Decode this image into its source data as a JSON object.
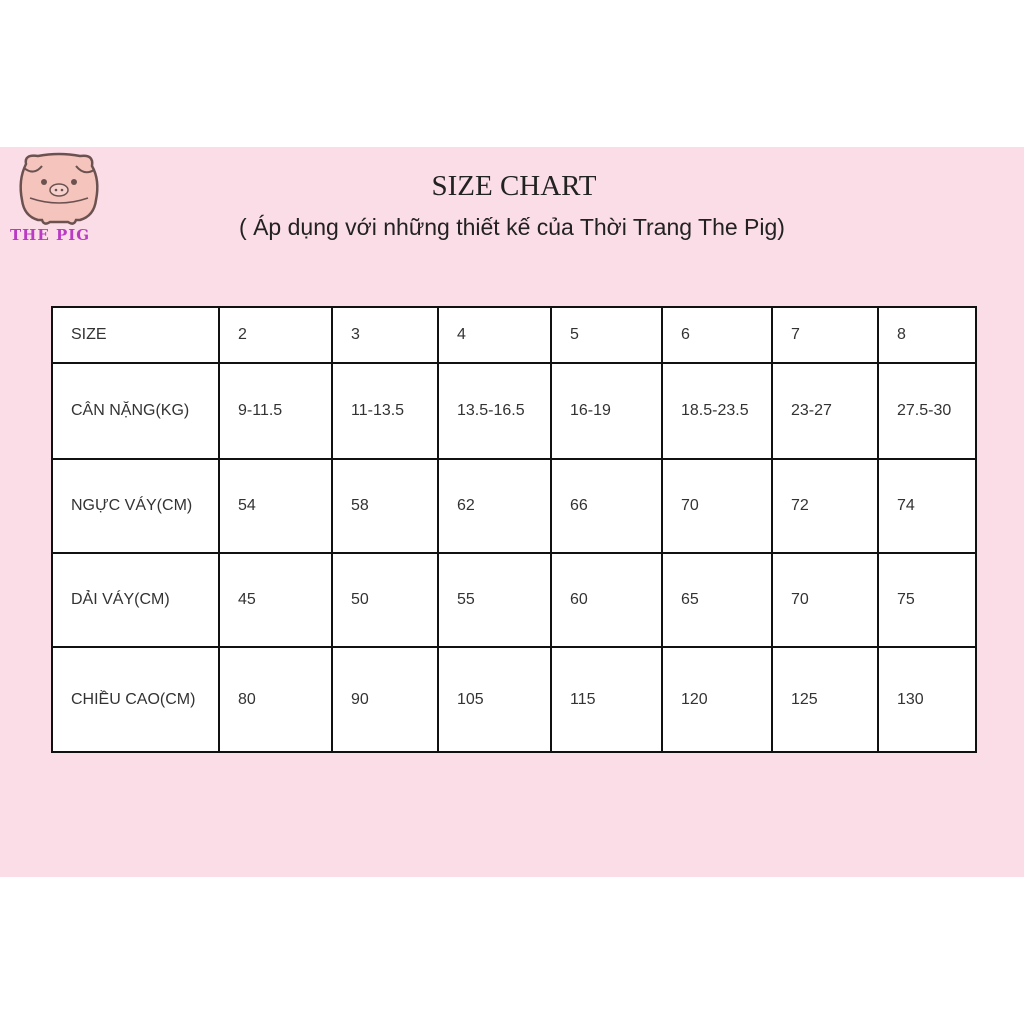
{
  "brand": {
    "logo_text": "THE PIG",
    "logo_icon": "pig-icon",
    "accent": "#b93bc4",
    "background": "#fbdde7"
  },
  "header": {
    "title": "SIZE CHART",
    "subtitle": "( Áp dụng với những thiết kế của Thời Trang The Pig)"
  },
  "table": {
    "rows": [
      {
        "label": "SIZE",
        "values": [
          "2",
          "3",
          "4",
          "5",
          "6",
          "7",
          "8"
        ]
      },
      {
        "label": "CÂN NẶNG(KG)",
        "values": [
          "9-11.5",
          "11-13.5",
          "13.5-16.5",
          "16-19",
          "18.5-23.5",
          "23-27",
          "27.5-30"
        ]
      },
      {
        "label": "NGỰC VÁY(CM)",
        "values": [
          "54",
          "58",
          "62",
          "66",
          "70",
          "72",
          "74"
        ]
      },
      {
        "label": "DẢI VÁY(CM)",
        "values": [
          "45",
          "50",
          "55",
          "60",
          "65",
          "70",
          "75"
        ]
      },
      {
        "label": "CHIỀU CAO(CM)",
        "values": [
          "80",
          "90",
          "105",
          "115",
          "120",
          "125",
          "130"
        ]
      }
    ]
  }
}
